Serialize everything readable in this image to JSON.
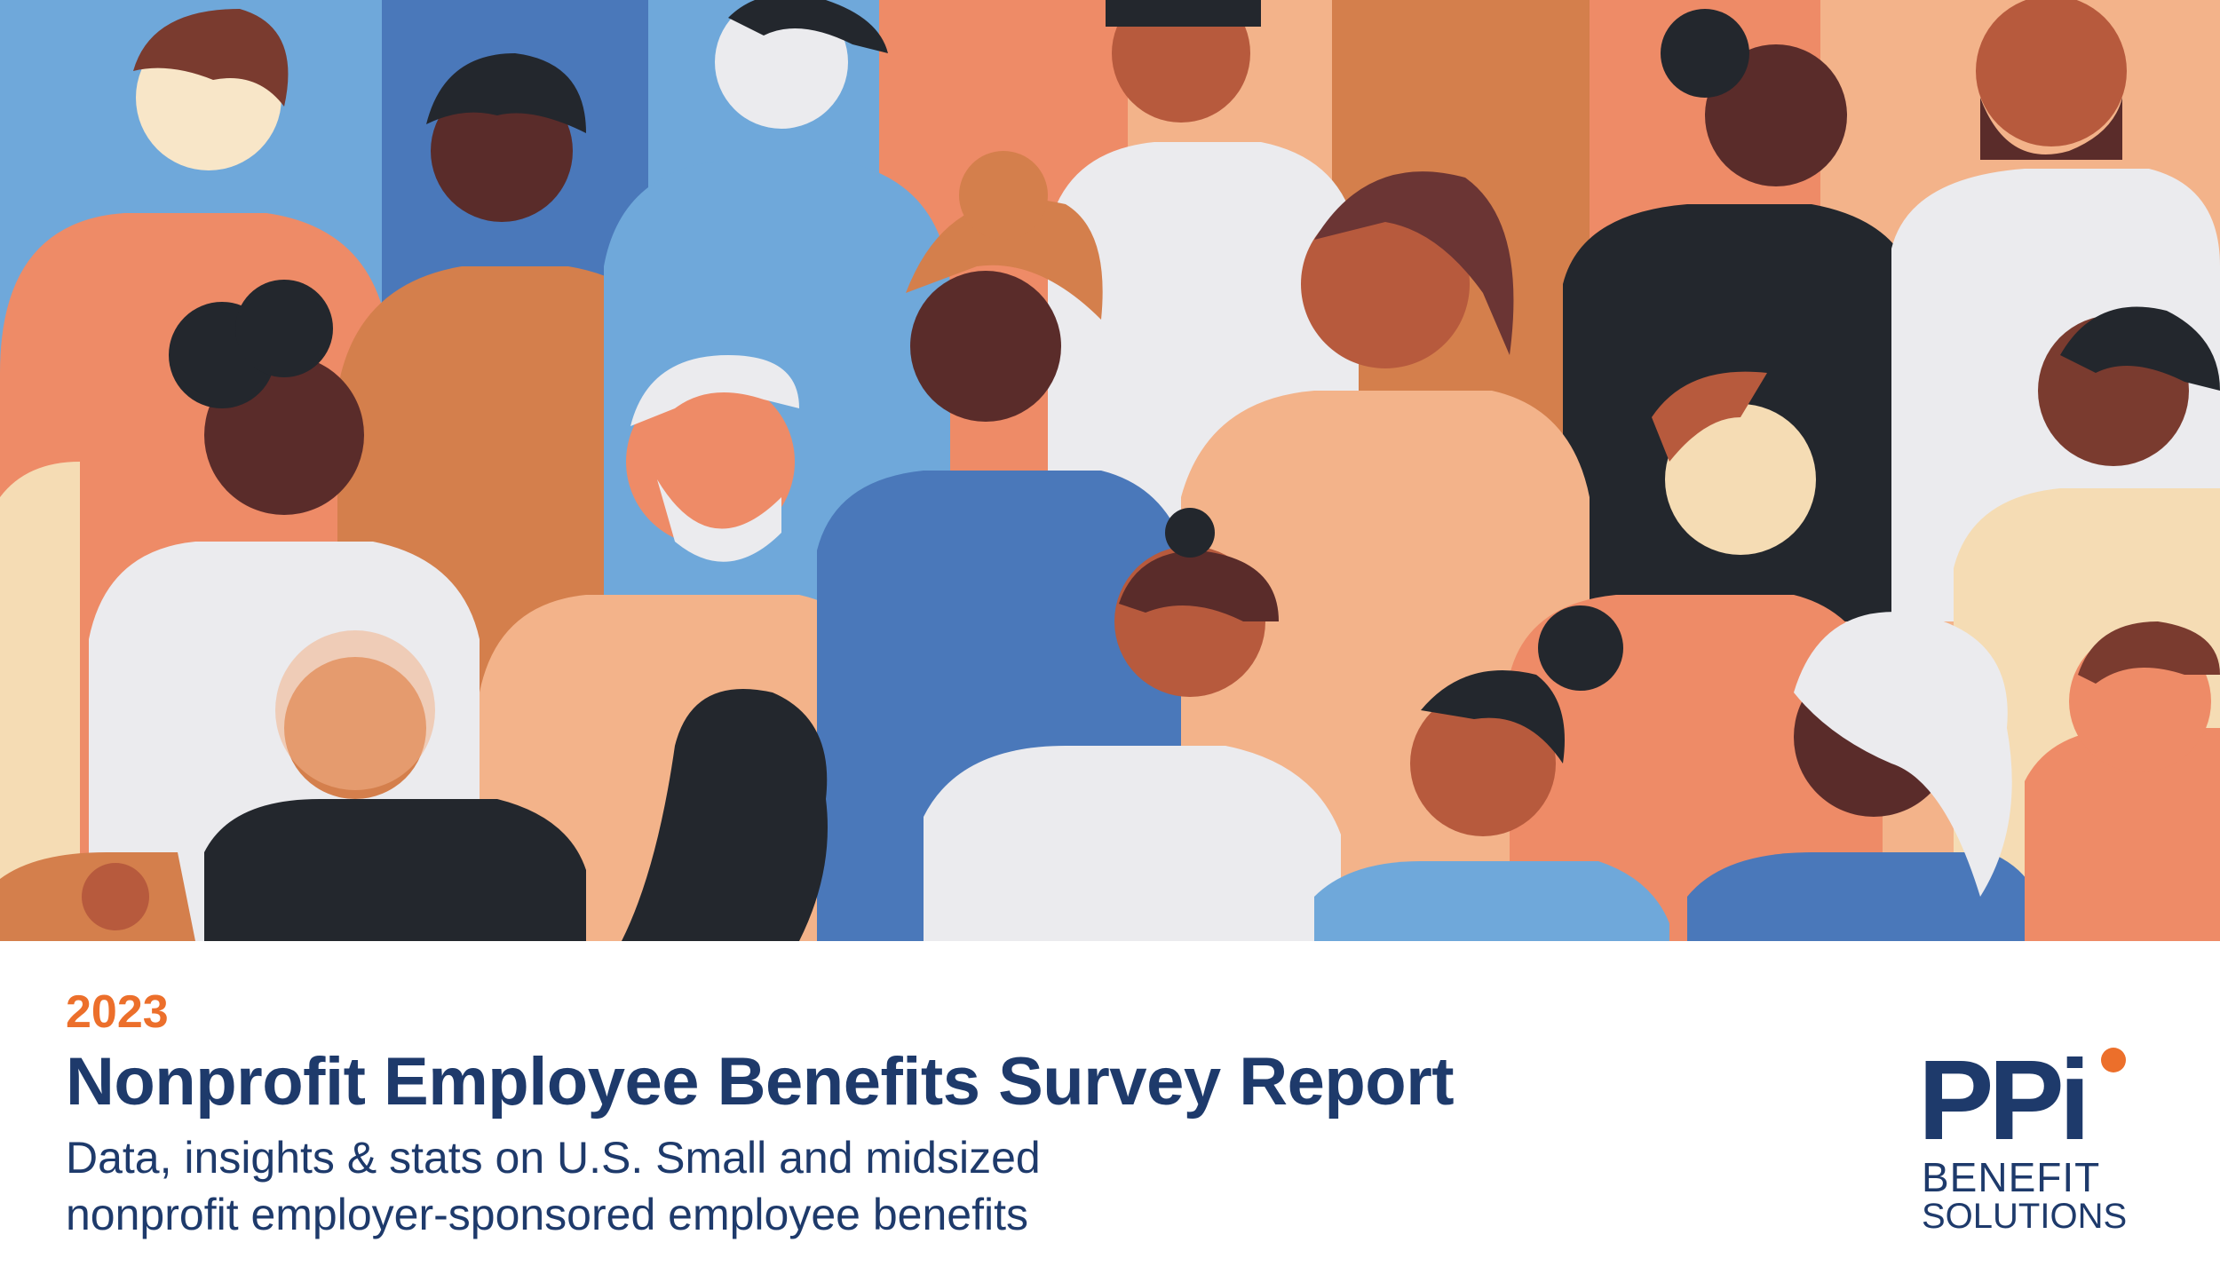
{
  "report": {
    "year": "2023",
    "title": "Nonprofit Employee Benefits Survey Report",
    "subtitle_line1": "Data, insights & stats on U.S. Small and midsized",
    "subtitle_line2": "nonprofit employer-sponsored employee benefits"
  },
  "logo": {
    "mark": "PPi",
    "line1": "BENEFIT",
    "line2": "SOLUTIONS"
  },
  "colors": {
    "navy": "#1e3a6b",
    "orange": "#ec6f2b"
  }
}
